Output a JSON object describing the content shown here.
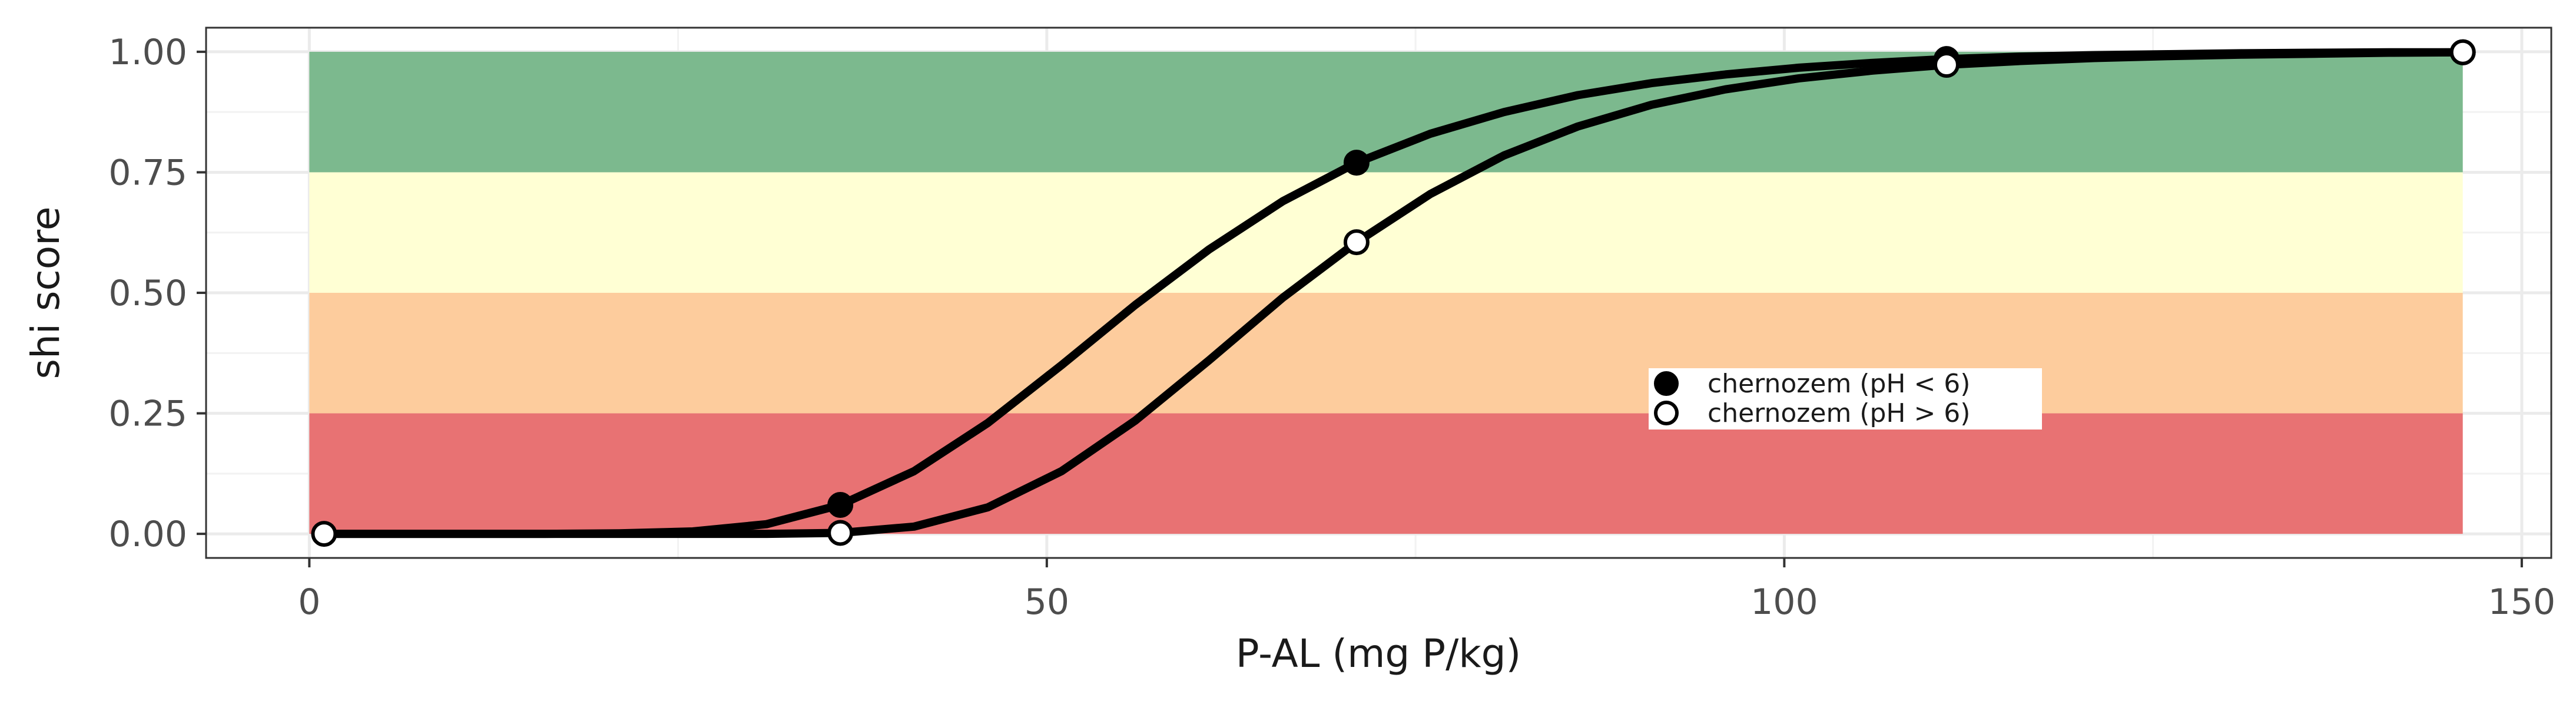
{
  "chart_data": {
    "type": "line",
    "title": "",
    "xlabel": "P-AL (mg P/kg)",
    "ylabel": "shi score",
    "xlim": [
      -7,
      152
    ],
    "ylim": [
      -0.05,
      1.05
    ],
    "x_ticks": [
      0,
      50,
      100,
      150
    ],
    "x_tick_labels": [
      "0",
      "50",
      "100",
      "150"
    ],
    "y_ticks": [
      0,
      0.25,
      0.5,
      0.75,
      1
    ],
    "y_tick_labels": [
      "0.00",
      "0.25",
      "0.50",
      "0.75",
      "1.00"
    ],
    "grid": true,
    "legend_position": "center-right",
    "bands": [
      {
        "y0": 0.75,
        "y1": 1.0,
        "x0": 0,
        "x1": 146,
        "color": "#7cb98e"
      },
      {
        "y0": 0.5,
        "y1": 0.75,
        "x0": 0,
        "x1": 146,
        "color": "#ffffd4"
      },
      {
        "y0": 0.25,
        "y1": 0.5,
        "x0": 0,
        "x1": 146,
        "color": "#fdcc9d"
      },
      {
        "y0": 0.0,
        "y1": 0.25,
        "x0": 0,
        "x1": 146,
        "color": "#e87273"
      }
    ],
    "series": [
      {
        "name": "chernozem  (pH < 6)",
        "marker": "filled",
        "color": "#000000",
        "x": [
          1,
          6,
          11,
          16,
          21,
          26,
          31,
          36,
          41,
          46,
          51,
          56,
          61,
          66,
          71,
          76,
          81,
          86,
          91,
          96,
          101,
          106,
          111,
          116,
          121,
          126,
          131,
          136,
          141,
          146
        ],
        "y": [
          0.0,
          0.0,
          0.0,
          0.0,
          0.001,
          0.005,
          0.02,
          0.06,
          0.13,
          0.23,
          0.35,
          0.475,
          0.59,
          0.69,
          0.77,
          0.83,
          0.875,
          0.91,
          0.935,
          0.953,
          0.967,
          0.977,
          0.985,
          0.99,
          0.993,
          0.995,
          0.997,
          0.998,
          0.999,
          0.999
        ],
        "marker_x": [
          36,
          71,
          111,
          146
        ],
        "marker_y": [
          0.06,
          0.77,
          0.985,
          0.999
        ]
      },
      {
        "name": "chernozem  (pH > 6)",
        "marker": "open",
        "color": "#000000",
        "x": [
          1,
          6,
          11,
          16,
          21,
          26,
          31,
          36,
          41,
          46,
          51,
          56,
          61,
          66,
          71,
          76,
          81,
          86,
          91,
          96,
          101,
          106,
          111,
          116,
          121,
          126,
          131,
          136,
          141,
          146
        ],
        "y": [
          0.0,
          0.0,
          0.0,
          0.0,
          0.0,
          0.0,
          0.0,
          0.002,
          0.015,
          0.055,
          0.13,
          0.235,
          0.36,
          0.49,
          0.605,
          0.705,
          0.785,
          0.845,
          0.89,
          0.922,
          0.945,
          0.961,
          0.973,
          0.981,
          0.987,
          0.991,
          0.994,
          0.996,
          0.998,
          0.999
        ],
        "marker_x": [
          1,
          36,
          71,
          111,
          146
        ],
        "marker_y": [
          0.0,
          0.002,
          0.605,
          0.973,
          0.999
        ]
      }
    ]
  }
}
